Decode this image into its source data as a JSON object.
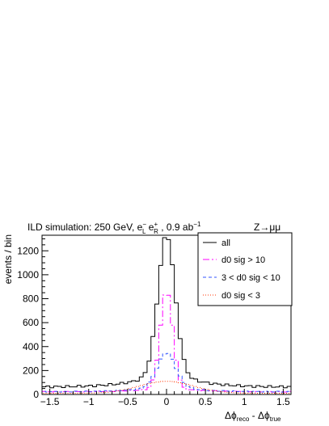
{
  "header": {
    "title_prefix": "ILD simulation: 250 GeV, e",
    "title_em_sup": "−",
    "title_em_sub": "L",
    "title_e2": " e",
    "title_ep_sup": "+",
    "title_ep_sub": "R",
    "title_lumi": " , 0.9 ab",
    "title_lumi_sup": "−1",
    "process": "Z→μμ"
  },
  "axes": {
    "ylabel": "events / bin",
    "xlabel_base": "Δϕ",
    "xlabel_reco_sub": "reco",
    "xlabel_minus": " - Δϕ",
    "xlabel_true_sub": "true"
  },
  "chart_data": {
    "type": "histogram",
    "xlim": [
      -1.6,
      1.6
    ],
    "ylim": [
      0,
      1330
    ],
    "bin_width": 0.05,
    "x_ticks": [
      "−1.5",
      "−1",
      "−0.5",
      "0",
      "0.5",
      "1",
      "1.5"
    ],
    "x_tick_values": [
      -1.5,
      -1,
      -0.5,
      0,
      0.5,
      1,
      1.5
    ],
    "y_ticks": [
      "0",
      "200",
      "400",
      "600",
      "800",
      "1000",
      "1200"
    ],
    "y_tick_values": [
      0,
      200,
      400,
      600,
      800,
      1000,
      1200
    ],
    "grid": false,
    "legend_position": "top-right",
    "series": [
      {
        "name": "all",
        "color": "#000000",
        "dash": "solid",
        "core": 1280,
        "width": 0.11,
        "tail_at_zero": 160,
        "tail_amp": 60,
        "base": 62
      },
      {
        "name": "d0 sig > 10",
        "color": "#ff00ff",
        "dash": "8,3,2,3",
        "core": 850,
        "width": 0.08,
        "tail_at_zero": 40,
        "tail_amp": 20,
        "base": 22
      },
      {
        "name": "3 < d0 sig < 10",
        "color": "#3355ff",
        "dash": "4,3",
        "core": 330,
        "width": 0.12,
        "tail_at_zero": 60,
        "tail_amp": 26,
        "base": 22
      },
      {
        "name": "d0 sig < 3",
        "color": "#ff3300",
        "dash": "1,2",
        "core": 100,
        "width": 0.35,
        "tail_at_zero": 0,
        "tail_amp": 0,
        "base": 10
      }
    ]
  }
}
